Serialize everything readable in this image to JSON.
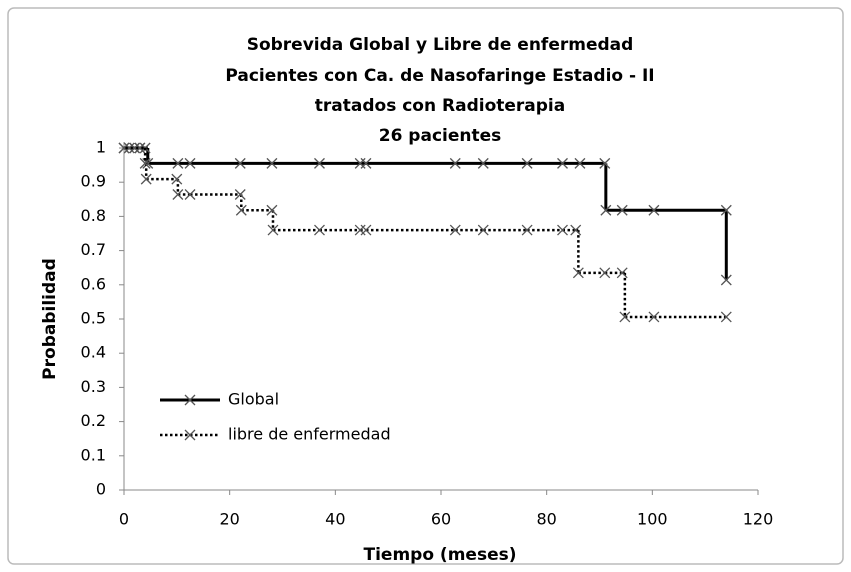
{
  "chart_data": {
    "type": "step",
    "title": [
      "Sobrevida Global y Libre de enfermedad",
      "Pacientes con Ca. de Nasofaringe Estadio - II",
      "tratados con Radioterapia",
      "26 pacientes"
    ],
    "x_label": "Tiempo (meses)",
    "y_label": "Probabilidad",
    "xlim": [
      0,
      120
    ],
    "xticks": [
      0,
      20,
      40,
      60,
      80,
      100,
      120
    ],
    "ylim": [
      0,
      1
    ],
    "yticks": [
      0,
      0.1,
      0.2,
      0.3,
      0.4,
      0.5,
      0.6,
      0.7,
      0.8,
      0.9,
      1
    ],
    "grid": false,
    "legend": "lower-left",
    "series": [
      {
        "name": "Global",
        "color": "#000000",
        "dash": "solid",
        "x": [
          0,
          2,
          3,
          4,
          4.5,
          10.2,
          12.5,
          22,
          28,
          37,
          44.7,
          45.8,
          62.7,
          68,
          76.3,
          83,
          86.3,
          91,
          91.2,
          94.3,
          100.3,
          114,
          114
        ],
        "values": [
          1,
          1,
          1,
          1,
          0.955,
          0.955,
          0.955,
          0.955,
          0.955,
          0.955,
          0.955,
          0.955,
          0.955,
          0.955,
          0.955,
          0.955,
          0.955,
          0.955,
          0.818,
          0.818,
          0.818,
          0.818,
          0.614
        ]
      },
      {
        "name": "libre de enfermedad",
        "color": "#000000",
        "dash": "dotted",
        "x": [
          0,
          1,
          2,
          3,
          4,
          4.2,
          10,
          10.2,
          12.5,
          22,
          22.2,
          28,
          28.2,
          37,
          44.7,
          45.8,
          62.7,
          68,
          76.3,
          83,
          85.5,
          86,
          91,
          94.3,
          94.8,
          100.3,
          114
        ],
        "values": [
          1,
          1,
          1,
          1,
          0.955,
          0.909,
          0.909,
          0.864,
          0.864,
          0.864,
          0.818,
          0.818,
          0.76,
          0.76,
          0.76,
          0.76,
          0.76,
          0.76,
          0.76,
          0.76,
          0.76,
          0.635,
          0.635,
          0.635,
          0.506,
          0.506,
          0.506
        ]
      }
    ]
  }
}
